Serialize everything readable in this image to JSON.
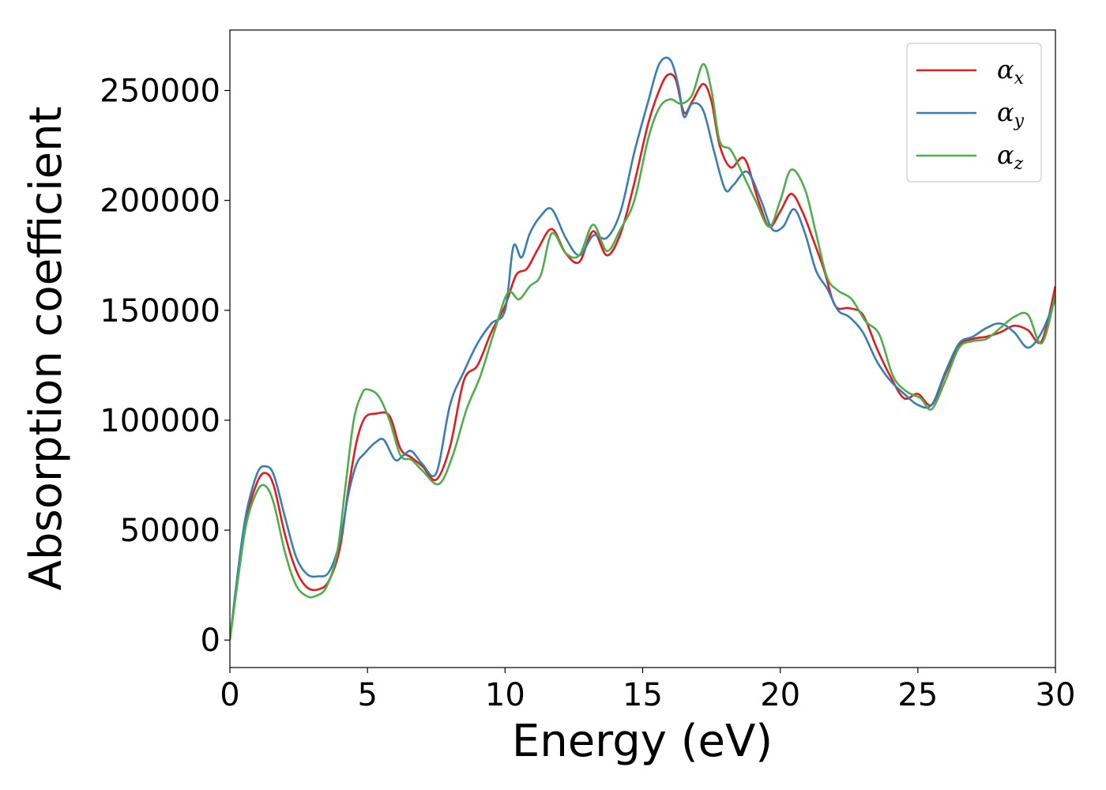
{
  "chart_data": {
    "type": "line",
    "xlabel": "Energy (eV)",
    "ylabel": "Absorption coefficient",
    "xlim": [
      0,
      30
    ],
    "ylim": [
      -12500,
      277500
    ],
    "xticks": [
      0,
      5,
      10,
      15,
      20,
      25,
      30
    ],
    "yticks": [
      0,
      50000,
      100000,
      150000,
      200000,
      250000
    ],
    "grid": false,
    "legend_position": "top-right",
    "series": [
      {
        "name": "α",
        "subscript": "x",
        "color": "#e41a1c",
        "x": [
          0,
          0.3,
          0.6,
          1.0,
          1.3,
          1.6,
          2.0,
          2.4,
          2.8,
          3.2,
          3.6,
          4.0,
          4.3,
          4.6,
          4.9,
          5.3,
          5.8,
          6.2,
          6.6,
          7.0,
          7.5,
          8.0,
          8.5,
          9.0,
          9.5,
          10.0,
          10.4,
          10.8,
          11.2,
          11.7,
          12.2,
          12.7,
          13.2,
          13.7,
          14.2,
          14.7,
          15.2,
          15.6,
          15.9,
          16.2,
          16.5,
          16.8,
          17.2,
          17.5,
          17.8,
          18.2,
          18.7,
          19.2,
          19.6,
          20.0,
          20.4,
          20.8,
          21.2,
          21.6,
          22.0,
          22.5,
          23.0,
          23.5,
          24.0,
          24.5,
          25.0,
          25.5,
          26.0,
          26.5,
          27.0,
          27.5,
          28.0,
          28.5,
          29.0,
          29.5,
          30.0
        ],
        "y": [
          0,
          30000,
          55000,
          72000,
          76000,
          70000,
          48000,
          32000,
          24000,
          23000,
          27000,
          42000,
          68000,
          90000,
          101000,
          103000,
          102000,
          87000,
          83000,
          79000,
          73000,
          88000,
          118000,
          125000,
          140000,
          152000,
          166000,
          169000,
          178000,
          187000,
          176000,
          172000,
          186000,
          175000,
          185000,
          208000,
          235000,
          250000,
          257000,
          255000,
          240000,
          245000,
          253000,
          245000,
          225000,
          215000,
          219000,
          200000,
          188000,
          195000,
          203000,
          195000,
          182000,
          168000,
          152000,
          151000,
          148000,
          133000,
          120000,
          110000,
          112000,
          107000,
          121000,
          134000,
          137000,
          138000,
          140000,
          143000,
          141000,
          136000,
          161000
        ]
      },
      {
        "name": "α",
        "subscript": "y",
        "color": "#377eb8",
        "x": [
          0,
          0.3,
          0.6,
          1.0,
          1.3,
          1.6,
          2.0,
          2.4,
          2.8,
          3.2,
          3.6,
          4.0,
          4.3,
          4.6,
          4.9,
          5.3,
          5.6,
          6.0,
          6.3,
          6.6,
          7.0,
          7.5,
          8.0,
          8.5,
          9.0,
          9.5,
          10.0,
          10.3,
          10.6,
          10.9,
          11.3,
          11.7,
          12.2,
          12.7,
          13.2,
          13.7,
          14.2,
          14.7,
          15.2,
          15.6,
          16.0,
          16.3,
          16.5,
          16.8,
          17.2,
          17.6,
          18.0,
          18.3,
          18.8,
          19.3,
          19.7,
          20.1,
          20.5,
          20.9,
          21.3,
          21.7,
          22.1,
          22.5,
          23.0,
          23.5,
          24.0,
          24.5,
          25.0,
          25.5,
          26.0,
          26.5,
          27.0,
          27.5,
          28.0,
          28.5,
          29.0,
          29.5,
          30.0
        ],
        "y": [
          0,
          32000,
          58000,
          76000,
          79000,
          75000,
          56000,
          38000,
          30000,
          29000,
          31000,
          45000,
          66000,
          80000,
          85000,
          90000,
          91000,
          82000,
          84000,
          86000,
          80000,
          76000,
          107000,
          122000,
          135000,
          144000,
          150000,
          179000,
          174000,
          185000,
          193000,
          196000,
          183000,
          175000,
          184000,
          183000,
          195000,
          222000,
          245000,
          262000,
          264000,
          252000,
          238000,
          244000,
          241000,
          222000,
          205000,
          207000,
          213000,
          200000,
          187000,
          188000,
          196000,
          185000,
          168000,
          160000,
          150000,
          147000,
          140000,
          127000,
          118000,
          112000,
          107000,
          107000,
          122000,
          135000,
          138000,
          142000,
          144000,
          140000,
          133000,
          140000,
          155000
        ]
      },
      {
        "name": "α",
        "subscript": "z",
        "color": "#4daf4a",
        "x": [
          0,
          0.3,
          0.6,
          1.0,
          1.3,
          1.6,
          2.0,
          2.4,
          2.8,
          3.1,
          3.5,
          3.9,
          4.2,
          4.5,
          4.8,
          5.0,
          5.4,
          5.8,
          6.2,
          6.6,
          7.0,
          7.6,
          8.1,
          8.6,
          9.1,
          9.6,
          10.1,
          10.5,
          10.9,
          11.3,
          11.7,
          12.2,
          12.7,
          13.2,
          13.7,
          14.2,
          14.7,
          15.2,
          15.6,
          16.0,
          16.4,
          16.8,
          17.2,
          17.5,
          17.8,
          18.2,
          18.6,
          19.1,
          19.6,
          20.0,
          20.4,
          20.9,
          21.3,
          21.7,
          22.1,
          22.6,
          23.1,
          23.6,
          24.1,
          24.6,
          25.1,
          25.5,
          26.0,
          26.5,
          27.0,
          27.5,
          28.0,
          28.5,
          29.0,
          29.5,
          30.0
        ],
        "y": [
          0,
          28000,
          53000,
          68000,
          70000,
          62000,
          40000,
          25000,
          20000,
          20000,
          24000,
          40000,
          70000,
          100000,
          112000,
          114000,
          111000,
          100000,
          84000,
          82000,
          77000,
          71000,
          84000,
          105000,
          120000,
          140000,
          158000,
          155000,
          161000,
          166000,
          185000,
          176000,
          175000,
          189000,
          177000,
          187000,
          200000,
          228000,
          242000,
          246000,
          244000,
          248000,
          262000,
          250000,
          227000,
          223000,
          213000,
          200000,
          188000,
          200000,
          214000,
          205000,
          185000,
          165000,
          159000,
          155000,
          145000,
          139000,
          120000,
          113000,
          110000,
          105000,
          118000,
          133000,
          136000,
          137000,
          142000,
          147000,
          148000,
          135000,
          157000
        ]
      }
    ]
  }
}
